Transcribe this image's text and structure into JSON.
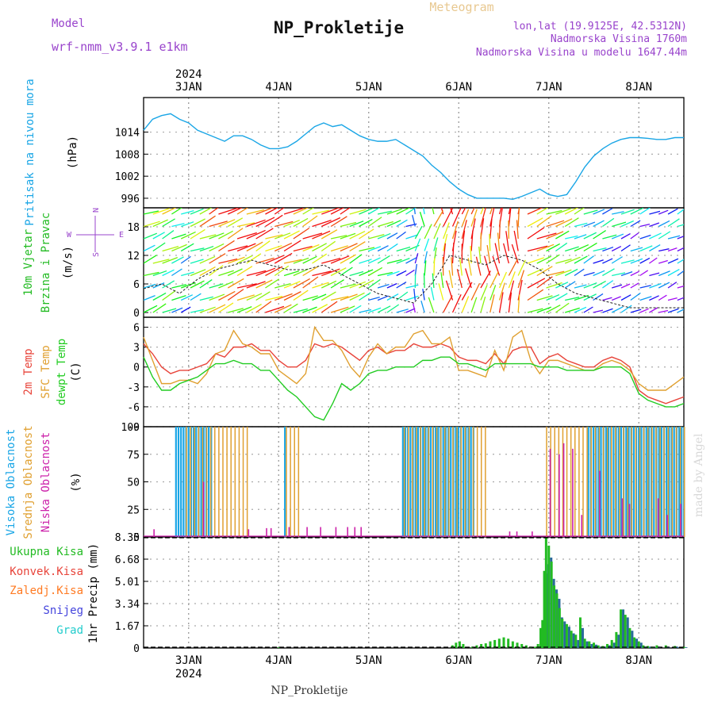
{
  "header": {
    "model_label": "Model",
    "model_name": "wrf-nmm_v3.9.1 e1km",
    "title": "NP_Prokletije",
    "meteogram": "Meteogram",
    "lonlat": "lon,lat (19.9125E, 42.5312N)",
    "altitude": "Nadmorska Visina 1760m",
    "model_altitude": "Nadmorska Visina u modelu 1647.44m",
    "footer_station": "NP_Prokletije",
    "watermark": "made by Angel"
  },
  "colors": {
    "pressure": "#1aa6e6",
    "temp2m": "#e8443a",
    "sfc": "#e0a030",
    "dewpt": "#22cc22",
    "model": "#9944cc",
    "meteogram": "#e8c890",
    "conv": "#e8443a",
    "froz": "#ff7a22",
    "snow": "#4444dd",
    "grad": "#22cccc",
    "total": "#22bb22",
    "high": "#1aa6e6",
    "mid": "#e0a030",
    "low": "#cc22aa"
  },
  "time_axis": {
    "year": "2024",
    "days": [
      "3JAN",
      "4JAN",
      "5JAN",
      "6JAN",
      "7JAN",
      "8JAN"
    ],
    "day_positions": [
      1,
      2,
      3,
      4,
      5,
      6
    ],
    "range": [
      0.5,
      6.5
    ]
  },
  "chart_data": [
    {
      "id": "pressure",
      "type": "line",
      "ylabel_left": "Pritisak na nivou mora",
      "ylabel_units": "(hPa)",
      "yticks": [
        996,
        1002,
        1008,
        1014
      ],
      "ylim": [
        993.4,
        1023.4
      ],
      "x": [
        0.5,
        0.6,
        0.7,
        0.8,
        0.9,
        1.0,
        1.1,
        1.2,
        1.3,
        1.4,
        1.5,
        1.6,
        1.7,
        1.8,
        1.9,
        2.0,
        2.1,
        2.2,
        2.3,
        2.4,
        2.5,
        2.6,
        2.7,
        2.8,
        2.9,
        3.0,
        3.1,
        3.2,
        3.3,
        3.4,
        3.5,
        3.6,
        3.7,
        3.8,
        3.9,
        4.0,
        4.1,
        4.2,
        4.3,
        4.4,
        4.5,
        4.6,
        4.7,
        4.8,
        4.9,
        5.0,
        5.1,
        5.2,
        5.3,
        5.4,
        5.5,
        5.6,
        5.7,
        5.8,
        5.9,
        6.0,
        6.1,
        6.2,
        6.3,
        6.4,
        6.5
      ],
      "series": [
        {
          "color_key": "pressure",
          "values": [
            1014.5,
            1017.5,
            1018.5,
            1019.0,
            1017.5,
            1016.5,
            1014.5,
            1013.5,
            1012.5,
            1011.5,
            1013.0,
            1013.0,
            1012.0,
            1010.5,
            1009.5,
            1009.5,
            1010.0,
            1011.5,
            1013.5,
            1015.5,
            1016.5,
            1015.5,
            1016.0,
            1014.5,
            1013.0,
            1012.0,
            1011.5,
            1011.5,
            1012.0,
            1010.5,
            1009.0,
            1007.5,
            1005.0,
            1003.0,
            1000.5,
            998.5,
            997.0,
            996.0,
            996.0,
            996.0,
            996.0,
            995.7,
            996.5,
            997.5,
            998.5,
            997.0,
            996.5,
            997.0,
            1000.5,
            1004.5,
            1007.5,
            1009.5,
            1011.0,
            1012.0,
            1012.5,
            1012.5,
            1012.3,
            1012.0,
            1012.0,
            1012.5,
            1012.5
          ]
        }
      ]
    },
    {
      "id": "wind",
      "type": "line",
      "ylabel_left": "10m Vjetar",
      "ylabel_left2": "Brzina i Pravac",
      "ylabel_units": "(m/s)",
      "compass": {
        "n": "N",
        "s": "S",
        "e": "E",
        "w": "W"
      },
      "yticks": [
        0,
        6,
        12,
        18
      ],
      "ylim": [
        -1,
        22
      ],
      "x": [
        0.5,
        0.7,
        0.9,
        1.1,
        1.3,
        1.5,
        1.7,
        1.9,
        2.1,
        2.3,
        2.5,
        2.7,
        2.9,
        3.1,
        3.3,
        3.5,
        3.7,
        3.9,
        4.1,
        4.3,
        4.5,
        4.7,
        4.9,
        5.1,
        5.3,
        5.5,
        5.7,
        5.9,
        6.1,
        6.3,
        6.5
      ],
      "series": [
        {
          "color_key": "total",
          "values": [
            5,
            6,
            4,
            7,
            9,
            10,
            11,
            10,
            9,
            9,
            10,
            8,
            6,
            4,
            3,
            2,
            6,
            12,
            11,
            10,
            12,
            11,
            9,
            6,
            4,
            3,
            2,
            1,
            1,
            1,
            1
          ]
        }
      ]
    },
    {
      "id": "temperature",
      "type": "line",
      "ylabel_left": "2m Temp",
      "ylabel_left2": "SFC Temp",
      "ylabel_left3": "dewpt Temp",
      "ylabel_units": "(C)",
      "yticks": [
        -9,
        -6,
        -3,
        0,
        3,
        6
      ],
      "ylim": [
        -9,
        7.5
      ],
      "x": [
        0.5,
        0.6,
        0.7,
        0.8,
        0.9,
        1.0,
        1.1,
        1.2,
        1.3,
        1.4,
        1.5,
        1.6,
        1.7,
        1.8,
        1.9,
        2.0,
        2.1,
        2.2,
        2.3,
        2.4,
        2.5,
        2.6,
        2.7,
        2.8,
        2.9,
        3.0,
        3.1,
        3.2,
        3.3,
        3.4,
        3.5,
        3.6,
        3.7,
        3.8,
        3.9,
        4.0,
        4.1,
        4.2,
        4.3,
        4.4,
        4.5,
        4.6,
        4.7,
        4.8,
        4.9,
        5.0,
        5.1,
        5.2,
        5.3,
        5.4,
        5.5,
        5.6,
        5.7,
        5.8,
        5.9,
        6.0,
        6.1,
        6.2,
        6.3,
        6.4,
        6.5
      ],
      "series": [
        {
          "name": "2m Temp",
          "color_key": "temp2m",
          "values": [
            3.5,
            2.0,
            0.0,
            -1.0,
            -0.5,
            -0.5,
            0.0,
            0.5,
            2.0,
            1.5,
            3.0,
            3.0,
            3.5,
            2.5,
            2.5,
            1.0,
            0.0,
            0.0,
            1.0,
            3.5,
            3.0,
            3.5,
            3.0,
            2.0,
            1.0,
            2.5,
            3.0,
            2.0,
            2.5,
            2.5,
            3.5,
            3.0,
            3.0,
            3.5,
            3.0,
            1.5,
            1.0,
            1.0,
            0.5,
            2.0,
            0.5,
            2.5,
            3.0,
            3.0,
            0.5,
            1.5,
            2.0,
            1.0,
            0.5,
            0.0,
            0.0,
            1.0,
            1.5,
            1.0,
            0.0,
            -3.5,
            -4.5,
            -5.0,
            -5.5,
            -5.0,
            -4.5
          ]
        },
        {
          "name": "SFC Temp",
          "color_key": "sfc",
          "values": [
            4.5,
            1.0,
            -2.5,
            -2.5,
            -2.0,
            -2.0,
            -2.5,
            -1.0,
            2.0,
            2.5,
            5.5,
            3.5,
            3.0,
            2.0,
            2.0,
            -0.5,
            -1.5,
            -2.5,
            -1.0,
            6.0,
            4.0,
            4.0,
            2.5,
            0.0,
            -1.5,
            1.5,
            3.5,
            2.0,
            3.0,
            3.0,
            5.0,
            5.5,
            3.5,
            3.5,
            4.5,
            -0.5,
            -0.5,
            -1.0,
            -1.5,
            2.5,
            -0.5,
            4.5,
            5.5,
            1.0,
            -1.0,
            1.0,
            1.0,
            0.5,
            0.0,
            -0.5,
            -0.5,
            0.5,
            1.0,
            0.5,
            -0.5,
            -2.5,
            -3.5,
            -3.5,
            -3.5,
            -2.5,
            -1.5
          ]
        },
        {
          "name": "dewpt Temp",
          "color_key": "dewpt",
          "values": [
            1.5,
            -1.5,
            -3.5,
            -3.5,
            -2.5,
            -2.0,
            -1.5,
            -0.5,
            0.5,
            0.5,
            1.0,
            0.5,
            0.5,
            -0.5,
            -0.5,
            -2.0,
            -3.5,
            -4.5,
            -6.0,
            -7.5,
            -8.0,
            -5.5,
            -2.5,
            -3.5,
            -2.5,
            -1.0,
            -0.5,
            -0.5,
            0.0,
            0.0,
            0.0,
            1.0,
            1.0,
            1.5,
            1.5,
            0.5,
            0.5,
            0.0,
            -0.5,
            0.5,
            0.5,
            0.5,
            0.5,
            0.5,
            0.0,
            0.0,
            0.0,
            -0.5,
            -0.5,
            -0.5,
            -0.5,
            0.0,
            0.0,
            0.0,
            -1.0,
            -4.0,
            -5.0,
            -5.5,
            -6.0,
            -6.0,
            -5.5
          ]
        }
      ]
    },
    {
      "id": "cloud",
      "type": "bar",
      "ylabel_left": "Visoka Oblacnost",
      "ylabel_left2": "Srednja Oblacnost",
      "ylabel_left3": "Niska Oblacnost",
      "ylabel_units": "(%)",
      "yticks": [
        0,
        25,
        50,
        75,
        100
      ],
      "ylim": [
        0,
        100
      ],
      "high_ranges": [
        [
          0.85,
          1.26
        ],
        [
          2.06,
          2.08
        ],
        [
          3.37,
          4.18
        ],
        [
          5.43,
          6.5
        ]
      ],
      "mid_ranges": [
        [
          0.95,
          1.65
        ],
        [
          2.06,
          2.2
        ],
        [
          3.37,
          4.27
        ],
        [
          4.95,
          6.5
        ]
      ],
      "low_points": [
        [
          0.6,
          7
        ],
        [
          1.15,
          50
        ],
        [
          1.65,
          7
        ],
        [
          1.85,
          8
        ],
        [
          1.9,
          8
        ],
        [
          2.1,
          9
        ],
        [
          2.3,
          9
        ],
        [
          2.45,
          9
        ],
        [
          2.62,
          9
        ],
        [
          2.75,
          9
        ],
        [
          2.83,
          9
        ],
        [
          2.9,
          9
        ],
        [
          4.55,
          5
        ],
        [
          4.63,
          5
        ],
        [
          4.8,
          5
        ],
        [
          5.0,
          80
        ],
        [
          5.1,
          75
        ],
        [
          5.15,
          85
        ],
        [
          5.25,
          80
        ],
        [
          5.35,
          20
        ],
        [
          5.55,
          60
        ],
        [
          5.8,
          35
        ],
        [
          5.88,
          30
        ],
        [
          6.2,
          35
        ],
        [
          6.3,
          20
        ],
        [
          6.45,
          30
        ]
      ]
    },
    {
      "id": "precip",
      "type": "bar",
      "legend": {
        "total": "Ukupna Kisa",
        "conv": "Konvek.Kisa",
        "froz": "Zaledj.Kisa",
        "snow": "Snijeg",
        "grad": "Grad"
      },
      "ylabel_units": "1hr Precip (mm)",
      "yticks": [
        0,
        1.67,
        3.34,
        5.01,
        6.68,
        8.35
      ],
      "ylim": [
        0,
        8.35
      ],
      "x": [
        2.0,
        3.93,
        3.97,
        4.01,
        4.05,
        4.15,
        4.2,
        4.25,
        4.3,
        4.35,
        4.4,
        4.45,
        4.5,
        4.55,
        4.6,
        4.65,
        4.7,
        4.75,
        4.8,
        4.85,
        4.88,
        4.91,
        4.93,
        4.95,
        4.97,
        5.0,
        5.03,
        5.06,
        5.09,
        5.12,
        5.15,
        5.2,
        5.25,
        5.3,
        5.35,
        5.4,
        5.45,
        5.5,
        5.55,
        5.6,
        5.65,
        5.7,
        5.75,
        5.8,
        5.85,
        5.9,
        5.95,
        6.0,
        6.05,
        6.1,
        6.15,
        6.2,
        6.3,
        6.4,
        6.5
      ],
      "total": [
        0.05,
        0.2,
        0.4,
        0.5,
        0.3,
        0.1,
        0.2,
        0.3,
        0.35,
        0.5,
        0.6,
        0.7,
        0.8,
        0.7,
        0.5,
        0.4,
        0.3,
        0.2,
        0.1,
        0.1,
        0.3,
        1.5,
        2.1,
        5.8,
        8.3,
        7.7,
        6.5,
        4.7,
        4.1,
        3.0,
        2.2,
        1.8,
        1.3,
        1.0,
        2.3,
        0.7,
        0.5,
        0.4,
        0.2,
        0.15,
        0.3,
        0.6,
        1.2,
        2.9,
        2.5,
        1.5,
        0.8,
        0.5,
        0.2,
        0.15,
        0.1,
        0.2,
        0.2,
        0.15,
        0.1
      ],
      "snow": [
        0,
        0,
        0,
        0,
        0,
        0,
        0,
        0,
        0,
        0,
        0,
        0,
        0,
        0,
        0,
        0,
        0,
        0,
        0,
        0,
        0.1,
        1.3,
        2.0,
        5.6,
        6.3,
        6.8,
        5.2,
        4.4,
        3.7,
        2.3,
        2.0,
        1.6,
        1.1,
        0.6,
        1.5,
        0.5,
        0.3,
        0.25,
        0.1,
        0.1,
        0.2,
        0.4,
        1.0,
        2.9,
        2.3,
        1.3,
        0.7,
        0.4,
        0.1,
        0.1,
        0.05,
        0.1,
        0.1,
        0.1,
        0.05
      ]
    }
  ]
}
